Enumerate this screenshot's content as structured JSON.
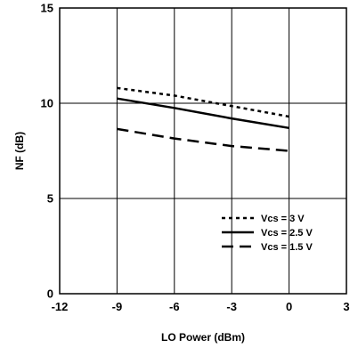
{
  "chart_data": {
    "type": "line",
    "title": "",
    "xlabel": "LO Power (dBm)",
    "ylabel": "NF (dB)",
    "xlim": [
      -12,
      3
    ],
    "ylim": [
      0,
      15
    ],
    "xticks": [
      "-12",
      "-9",
      "-6",
      "-3",
      "0",
      "3"
    ],
    "yticks": [
      "0",
      "5",
      "10",
      "15"
    ],
    "grid": true,
    "legend_position": "bottom-right",
    "series": [
      {
        "name": "Vcs = 3 V",
        "style": "dotted",
        "x": [
          -9,
          -6,
          -3,
          0
        ],
        "y": [
          10.8,
          10.4,
          9.85,
          9.3
        ]
      },
      {
        "name": "Vcs = 2.5 V",
        "style": "solid",
        "x": [
          -9,
          -6,
          -3,
          0
        ],
        "y": [
          10.25,
          9.75,
          9.2,
          8.7
        ]
      },
      {
        "name": "Vcs = 1.5 V",
        "style": "dashed",
        "x": [
          -9,
          -6,
          -3,
          0
        ],
        "y": [
          8.65,
          8.15,
          7.75,
          7.5
        ]
      }
    ]
  }
}
